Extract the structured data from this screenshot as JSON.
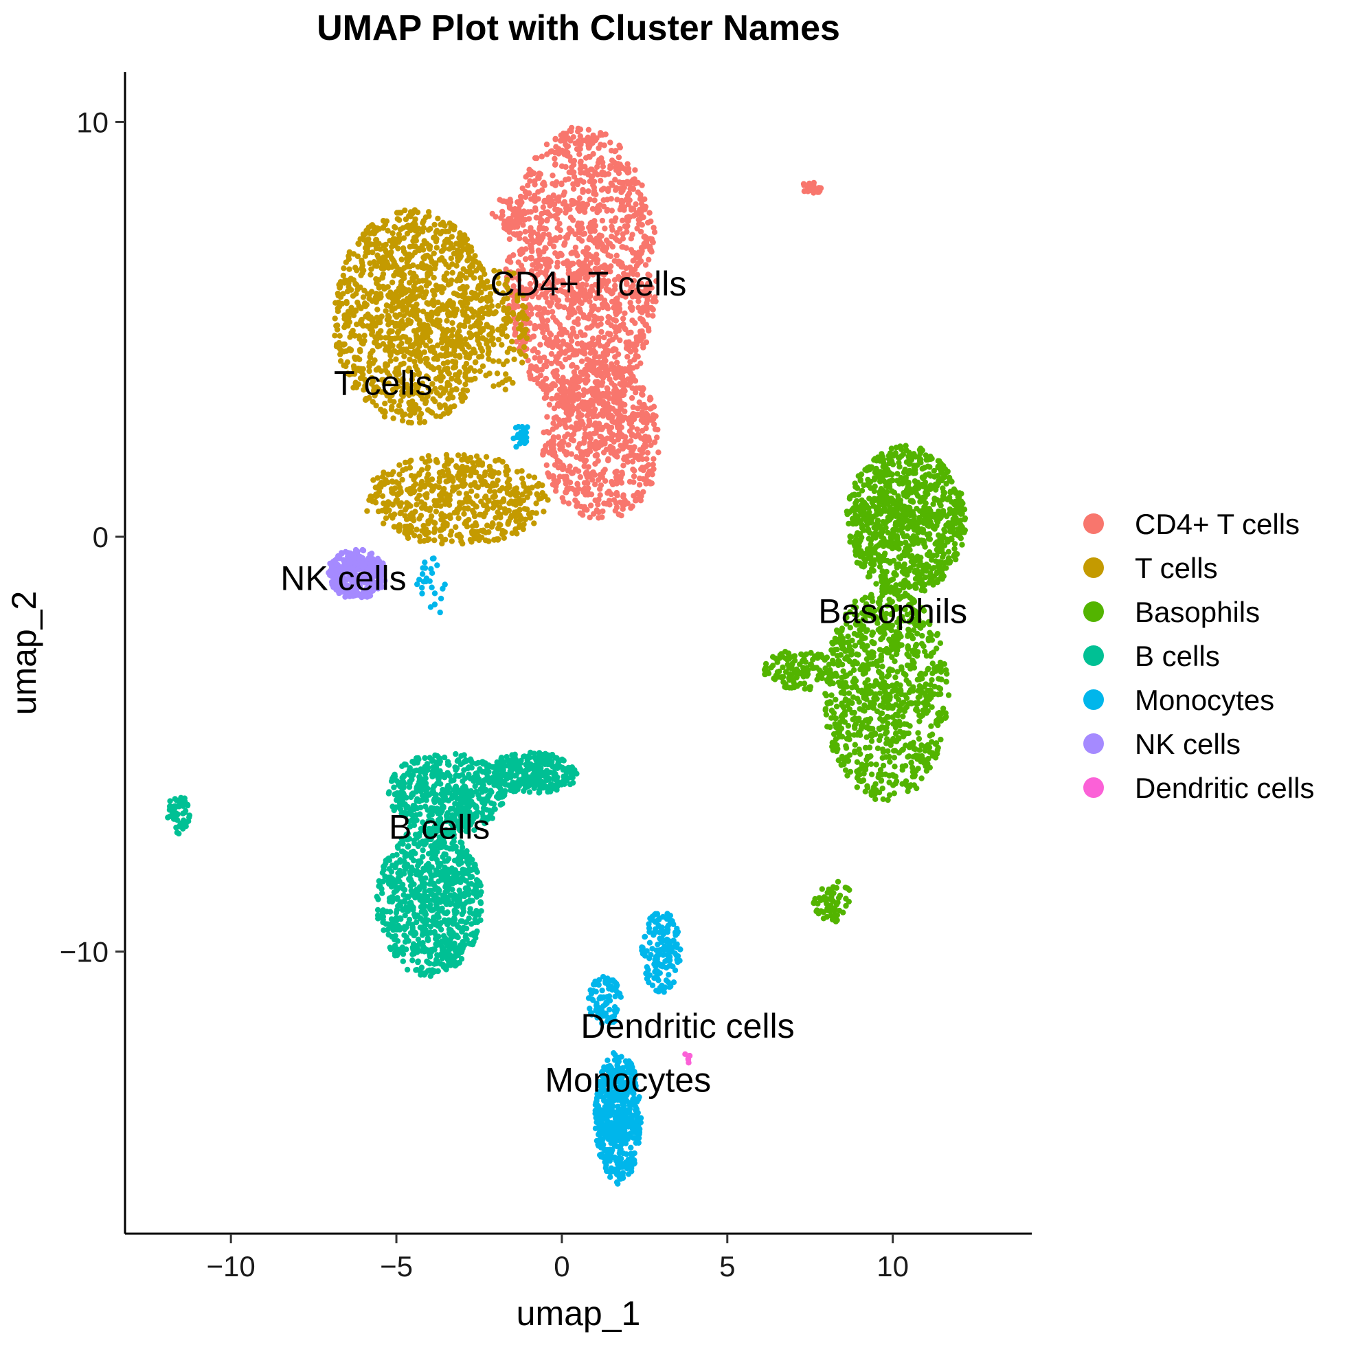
{
  "chart_data": {
    "type": "scatter",
    "title": "UMAP Plot with Cluster Names",
    "xlabel": "umap_1",
    "ylabel": "umap_2",
    "xlim": [
      -13.2,
      14.2
    ],
    "ylim": [
      -16.8,
      11.2
    ],
    "xticks": [
      -10,
      -5,
      0,
      5,
      10
    ],
    "yticks": [
      -10,
      0,
      10
    ],
    "xtick_labels": [
      "−10",
      "−5",
      "0",
      "5",
      "10"
    ],
    "ytick_labels": [
      "−10",
      "0",
      "10"
    ],
    "grid": false,
    "legend_position": "right",
    "series": [
      {
        "name": "CD4+ T cells",
        "color": "#F8766D",
        "label": "CD4+ T cells",
        "label_pos": [
          0.8,
          6.1
        ],
        "clusters": [
          {
            "cx": 0.6,
            "cy": 6.4,
            "rx": 2.3,
            "ry": 3.5,
            "n": 1400
          },
          {
            "cx": 1.2,
            "cy": 2.3,
            "rx": 1.8,
            "ry": 1.9,
            "n": 650
          },
          {
            "cx": -1.6,
            "cy": 7.8,
            "rx": 0.5,
            "ry": 0.4,
            "n": 40
          },
          {
            "cx": 7.5,
            "cy": 8.4,
            "rx": 0.4,
            "ry": 0.15,
            "n": 25
          }
        ]
      },
      {
        "name": "T cells",
        "color": "#C49A00",
        "label": "T cells",
        "label_pos": [
          -5.4,
          3.7
        ],
        "clusters": [
          {
            "cx": -4.5,
            "cy": 5.3,
            "rx": 2.4,
            "ry": 2.6,
            "n": 1200
          },
          {
            "cx": -3.2,
            "cy": 0.9,
            "rx": 2.8,
            "ry": 1.1,
            "n": 550
          },
          {
            "cx": -1.8,
            "cy": 5.0,
            "rx": 0.8,
            "ry": 1.5,
            "n": 120
          }
        ]
      },
      {
        "name": "Basophils",
        "color": "#53B400",
        "label": "Basophils",
        "label_pos": [
          10.0,
          -1.8
        ],
        "clusters": [
          {
            "cx": 10.4,
            "cy": 0.4,
            "rx": 1.8,
            "ry": 1.8,
            "n": 900
          },
          {
            "cx": 9.8,
            "cy": -3.8,
            "rx": 1.9,
            "ry": 2.6,
            "n": 900
          },
          {
            "cx": 7.2,
            "cy": -3.2,
            "rx": 1.1,
            "ry": 0.5,
            "n": 120
          },
          {
            "cx": 8.2,
            "cy": -8.8,
            "rx": 0.6,
            "ry": 0.5,
            "n": 60
          }
        ]
      },
      {
        "name": "B cells",
        "color": "#00C094",
        "label": "B cells",
        "label_pos": [
          -3.7,
          -7.0
        ],
        "clusters": [
          {
            "cx": -3.5,
            "cy": -6.2,
            "rx": 1.8,
            "ry": 1.0,
            "n": 500
          },
          {
            "cx": -4.0,
            "cy": -8.8,
            "rx": 1.6,
            "ry": 1.8,
            "n": 800
          },
          {
            "cx": -0.9,
            "cy": -5.7,
            "rx": 1.4,
            "ry": 0.5,
            "n": 300
          },
          {
            "cx": -11.6,
            "cy": -6.7,
            "rx": 0.35,
            "ry": 0.5,
            "n": 50
          }
        ]
      },
      {
        "name": "Monocytes",
        "color": "#00B6EB",
        "label": "Monocytes",
        "label_pos": [
          2.0,
          -13.1
        ],
        "clusters": [
          {
            "cx": 1.7,
            "cy": -14.0,
            "rx": 0.7,
            "ry": 1.6,
            "n": 500
          },
          {
            "cx": 3.0,
            "cy": -10.0,
            "rx": 0.6,
            "ry": 1.0,
            "n": 160
          },
          {
            "cx": 1.3,
            "cy": -11.2,
            "rx": 0.5,
            "ry": 0.6,
            "n": 80
          },
          {
            "cx": -1.2,
            "cy": 2.4,
            "rx": 0.3,
            "ry": 0.3,
            "n": 25
          },
          {
            "cx": -3.9,
            "cy": -1.2,
            "rx": 0.5,
            "ry": 0.7,
            "n": 25
          }
        ]
      },
      {
        "name": "NK cells",
        "color": "#A58AFF",
        "label": "NK cells",
        "label_pos": [
          -6.6,
          -1.0
        ],
        "clusters": [
          {
            "cx": -6.2,
            "cy": -0.9,
            "rx": 0.9,
            "ry": 0.6,
            "n": 350
          }
        ]
      },
      {
        "name": "Dendritic cells",
        "color": "#FB61D7",
        "label": "Dendritic cells",
        "label_pos": [
          3.8,
          -11.8
        ],
        "clusters": [
          {
            "cx": 3.8,
            "cy": -12.6,
            "rx": 0.15,
            "ry": 0.15,
            "n": 6
          }
        ]
      }
    ]
  }
}
